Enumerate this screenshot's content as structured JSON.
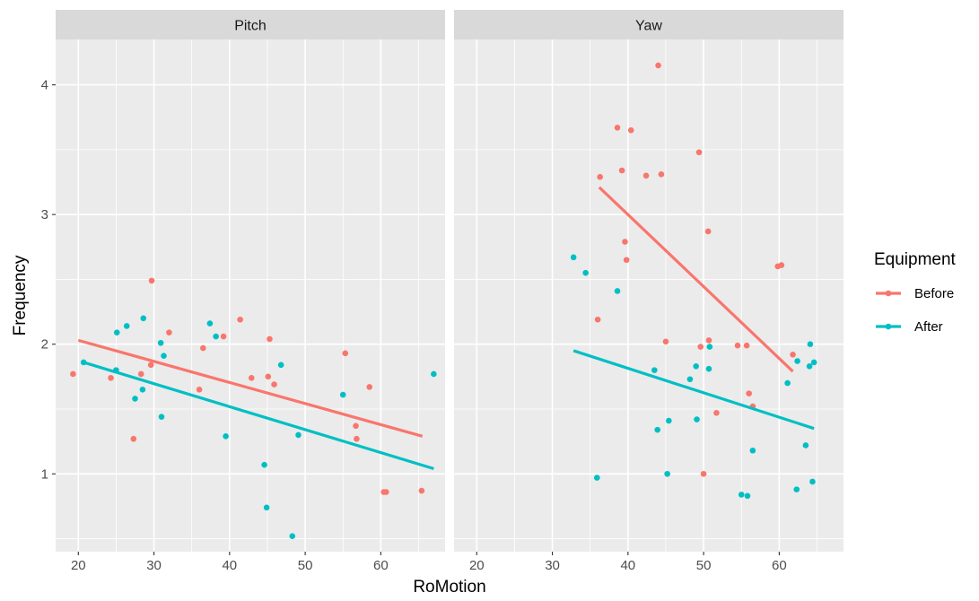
{
  "chart_data": {
    "type": "scatter",
    "xlabel": "RoMotion",
    "ylabel": "Frequency",
    "xlim": [
      17,
      68.5
    ],
    "ylim": [
      0.4,
      4.35
    ],
    "x_ticks": [
      20,
      30,
      40,
      50,
      60
    ],
    "y_ticks": [
      1,
      2,
      3,
      4
    ],
    "grid": true,
    "legend": {
      "title": "Equipment",
      "placement": "right",
      "entries": [
        {
          "name": "Before",
          "color": "#F8766D"
        },
        {
          "name": "After",
          "color": "#00BFC4"
        }
      ]
    },
    "panels": [
      {
        "label": "Pitch",
        "series": [
          {
            "name": "Before",
            "color": "#F8766D",
            "points": [
              [
                19.3,
                1.77
              ],
              [
                24.3,
                1.74
              ],
              [
                27.3,
                1.27
              ],
              [
                28.3,
                1.77
              ],
              [
                29.6,
                1.84
              ],
              [
                29.7,
                2.49
              ],
              [
                32.0,
                2.09
              ],
              [
                36.0,
                1.65
              ],
              [
                36.5,
                1.97
              ],
              [
                39.2,
                2.06
              ],
              [
                41.4,
                2.19
              ],
              [
                42.9,
                1.74
              ],
              [
                45.1,
                1.75
              ],
              [
                45.3,
                2.04
              ],
              [
                45.9,
                1.69
              ],
              [
                55.3,
                1.93
              ],
              [
                56.7,
                1.37
              ],
              [
                56.8,
                1.27
              ],
              [
                58.5,
                1.67
              ],
              [
                60.4,
                0.86
              ],
              [
                60.7,
                0.86
              ],
              [
                65.4,
                0.87
              ]
            ],
            "trend": {
              "x": [
                20.0,
                65.5
              ],
              "y": [
                2.03,
                1.29
              ]
            }
          },
          {
            "name": "After",
            "color": "#00BFC4",
            "points": [
              [
                20.7,
                1.86
              ],
              [
                25.0,
                1.8
              ],
              [
                25.1,
                2.09
              ],
              [
                26.4,
                2.14
              ],
              [
                27.5,
                1.58
              ],
              [
                28.5,
                1.65
              ],
              [
                28.6,
                2.2
              ],
              [
                30.9,
                2.01
              ],
              [
                31.0,
                1.44
              ],
              [
                31.3,
                1.91
              ],
              [
                37.4,
                2.16
              ],
              [
                38.2,
                2.06
              ],
              [
                39.5,
                1.29
              ],
              [
                44.6,
                1.07
              ],
              [
                44.9,
                0.74
              ],
              [
                46.8,
                1.84
              ],
              [
                48.3,
                0.52
              ],
              [
                49.1,
                1.3
              ],
              [
                55.0,
                1.61
              ],
              [
                67.0,
                1.77
              ]
            ],
            "trend": {
              "x": [
                20.7,
                67.0
              ],
              "y": [
                1.86,
                1.04
              ]
            }
          }
        ]
      },
      {
        "label": "Yaw",
        "series": [
          {
            "name": "Before",
            "color": "#F8766D",
            "points": [
              [
                36.0,
                2.19
              ],
              [
                36.3,
                3.29
              ],
              [
                38.6,
                3.67
              ],
              [
                39.2,
                3.34
              ],
              [
                39.6,
                2.79
              ],
              [
                39.8,
                2.65
              ],
              [
                40.4,
                3.65
              ],
              [
                42.4,
                3.3
              ],
              [
                44.0,
                4.15
              ],
              [
                44.4,
                3.31
              ],
              [
                45.0,
                2.02
              ],
              [
                49.4,
                3.48
              ],
              [
                49.6,
                1.98
              ],
              [
                50.0,
                1.0
              ],
              [
                50.6,
                2.87
              ],
              [
                50.7,
                2.03
              ],
              [
                51.7,
                1.47
              ],
              [
                54.5,
                1.99
              ],
              [
                55.7,
                1.99
              ],
              [
                56.0,
                1.62
              ],
              [
                56.5,
                1.52
              ],
              [
                59.8,
                2.6
              ],
              [
                60.3,
                2.61
              ],
              [
                61.8,
                1.92
              ]
            ],
            "trend": {
              "x": [
                36.2,
                61.8
              ],
              "y": [
                3.21,
                1.79
              ]
            }
          },
          {
            "name": "After",
            "color": "#00BFC4",
            "points": [
              [
                32.8,
                2.67
              ],
              [
                34.4,
                2.55
              ],
              [
                35.9,
                0.97
              ],
              [
                38.6,
                2.41
              ],
              [
                43.5,
                1.8
              ],
              [
                43.9,
                1.34
              ],
              [
                45.2,
                1.0
              ],
              [
                45.4,
                1.41
              ],
              [
                48.2,
                1.73
              ],
              [
                49.0,
                1.83
              ],
              [
                49.1,
                1.42
              ],
              [
                50.7,
                1.81
              ],
              [
                50.8,
                1.98
              ],
              [
                55.0,
                0.84
              ],
              [
                55.8,
                0.83
              ],
              [
                56.5,
                1.18
              ],
              [
                61.1,
                1.7
              ],
              [
                62.3,
                0.88
              ],
              [
                62.4,
                1.87
              ],
              [
                63.5,
                1.22
              ],
              [
                64.0,
                1.83
              ],
              [
                64.1,
                2.0
              ],
              [
                64.4,
                0.94
              ],
              [
                64.6,
                1.86
              ]
            ],
            "trend": {
              "x": [
                32.8,
                64.6
              ],
              "y": [
                1.95,
                1.35
              ]
            }
          }
        ]
      }
    ]
  }
}
